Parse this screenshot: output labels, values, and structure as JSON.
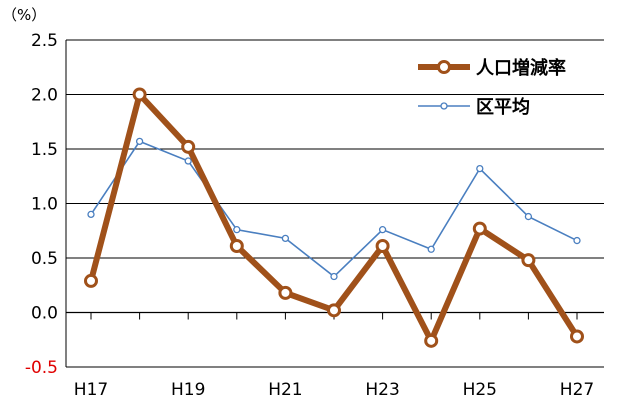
{
  "chart_data": {
    "type": "line",
    "unit_label": "（%）",
    "x": [
      "H17",
      "H18",
      "H19",
      "H20",
      "H21",
      "H22",
      "H23",
      "H24",
      "H25",
      "H26",
      "H27"
    ],
    "x_tick_labels": [
      "H17",
      "H19",
      "H21",
      "H23",
      "H25",
      "H27"
    ],
    "ylim": [
      -0.5,
      2.5
    ],
    "y_ticks": [
      "2.5",
      "2.0",
      "1.5",
      "1.0",
      "0.5",
      "0.0",
      "-0.5"
    ],
    "grid": "horizontal",
    "legend_position": "top-right",
    "series": [
      {
        "name": "人口増減率",
        "color": "#a0511a",
        "values": [
          0.29,
          2.0,
          1.52,
          0.61,
          0.18,
          0.02,
          0.61,
          -0.26,
          0.77,
          0.48,
          -0.22
        ]
      },
      {
        "name": "区平均",
        "color": "#4a7fc0",
        "values": [
          0.9,
          1.57,
          1.39,
          0.76,
          0.68,
          0.33,
          0.76,
          0.58,
          1.32,
          0.88,
          0.66
        ]
      }
    ]
  }
}
